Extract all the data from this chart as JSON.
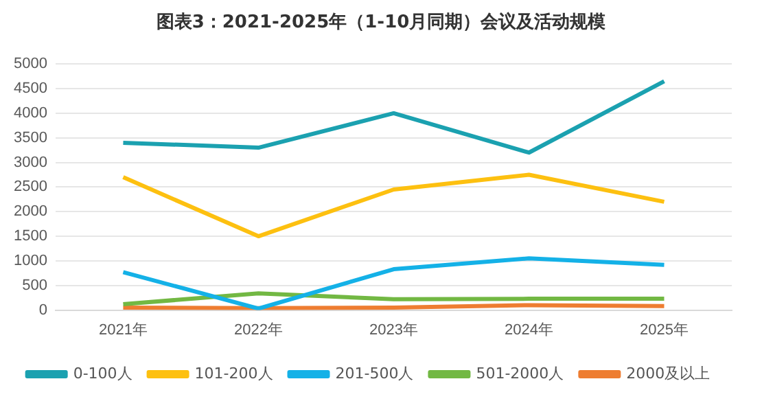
{
  "chart_data": {
    "type": "line",
    "title": "图表3：2021-2025年（1-10月同期）会议及活动规模",
    "categories": [
      "2021年",
      "2022年",
      "2023年",
      "2024年",
      "2025年"
    ],
    "series": [
      {
        "name": "0-100人",
        "color": "#1ba1b0",
        "values": [
          3400,
          3300,
          4000,
          3200,
          4650
        ]
      },
      {
        "name": "101-200人",
        "color": "#fdc010",
        "values": [
          2700,
          1500,
          2450,
          2750,
          2200
        ]
      },
      {
        "name": "201-500人",
        "color": "#14b1e7",
        "values": [
          770,
          30,
          830,
          1050,
          920
        ]
      },
      {
        "name": "501-2000人",
        "color": "#72b843",
        "values": [
          120,
          340,
          220,
          230,
          230
        ]
      },
      {
        "name": "2000及以上",
        "color": "#ee7d31",
        "values": [
          50,
          40,
          50,
          100,
          80
        ]
      }
    ],
    "ylim": [
      0,
      5000
    ],
    "yticks": [
      0,
      500,
      1000,
      1500,
      2000,
      2500,
      3000,
      3500,
      4000,
      4500,
      5000
    ],
    "grid": "y",
    "legend": "bottom",
    "marker": "none",
    "line_style": "solid"
  }
}
